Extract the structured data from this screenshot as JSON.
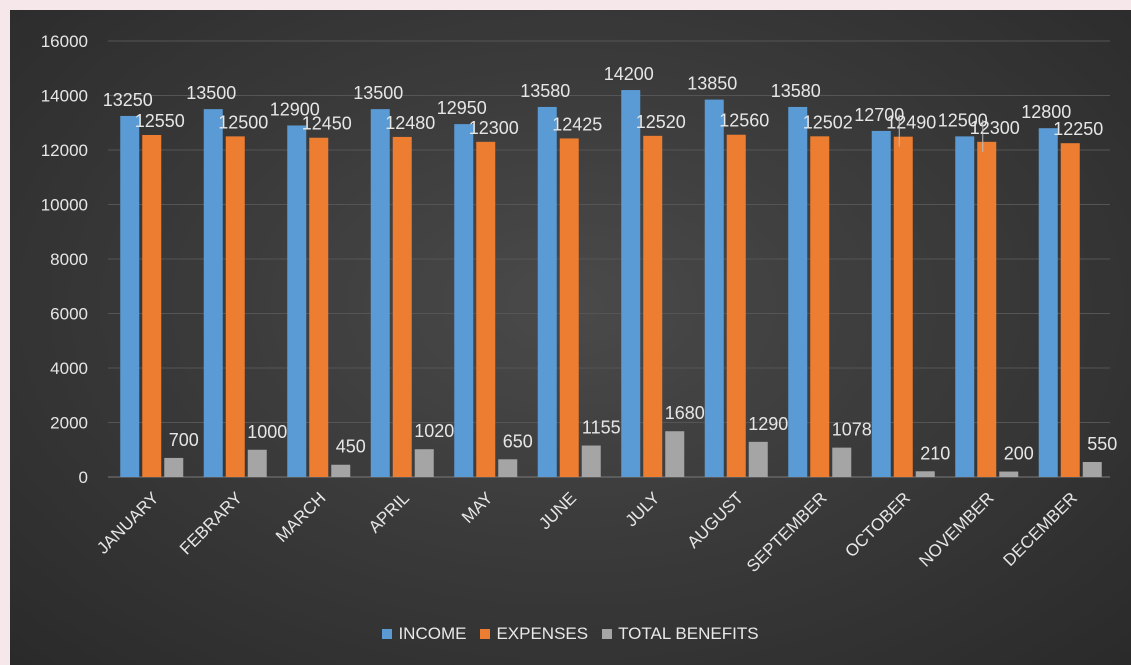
{
  "chart_data": {
    "type": "bar",
    "categories": [
      "JANUARY",
      "FEBRARY",
      "MARCH",
      "APRIL",
      "MAY",
      "JUNE",
      "JULY",
      "AUGUST",
      "SEPTEMBER",
      "OCTOBER",
      "NOVEMBER",
      "DECEMBER"
    ],
    "series": [
      {
        "name": "INCOME",
        "color": "#5b9bd5",
        "values": [
          13250,
          13500,
          12900,
          13500,
          12950,
          13580,
          14200,
          13850,
          13580,
          12700,
          12500,
          12800
        ]
      },
      {
        "name": "EXPENSES",
        "color": "#ed7d31",
        "values": [
          12550,
          12500,
          12450,
          12480,
          12300,
          12425,
          12520,
          12560,
          12502,
          12490,
          12300,
          12250
        ]
      },
      {
        "name": "TOTAL BENEFITS",
        "color": "#a5a5a5",
        "values": [
          700,
          1000,
          450,
          1020,
          650,
          1155,
          1680,
          1290,
          1078,
          210,
          200,
          550
        ]
      }
    ],
    "ylim": [
      0,
      16000
    ],
    "yticks": [
      0,
      2000,
      4000,
      6000,
      8000,
      10000,
      12000,
      14000,
      16000
    ],
    "grid": true,
    "legend_position": "bottom"
  }
}
